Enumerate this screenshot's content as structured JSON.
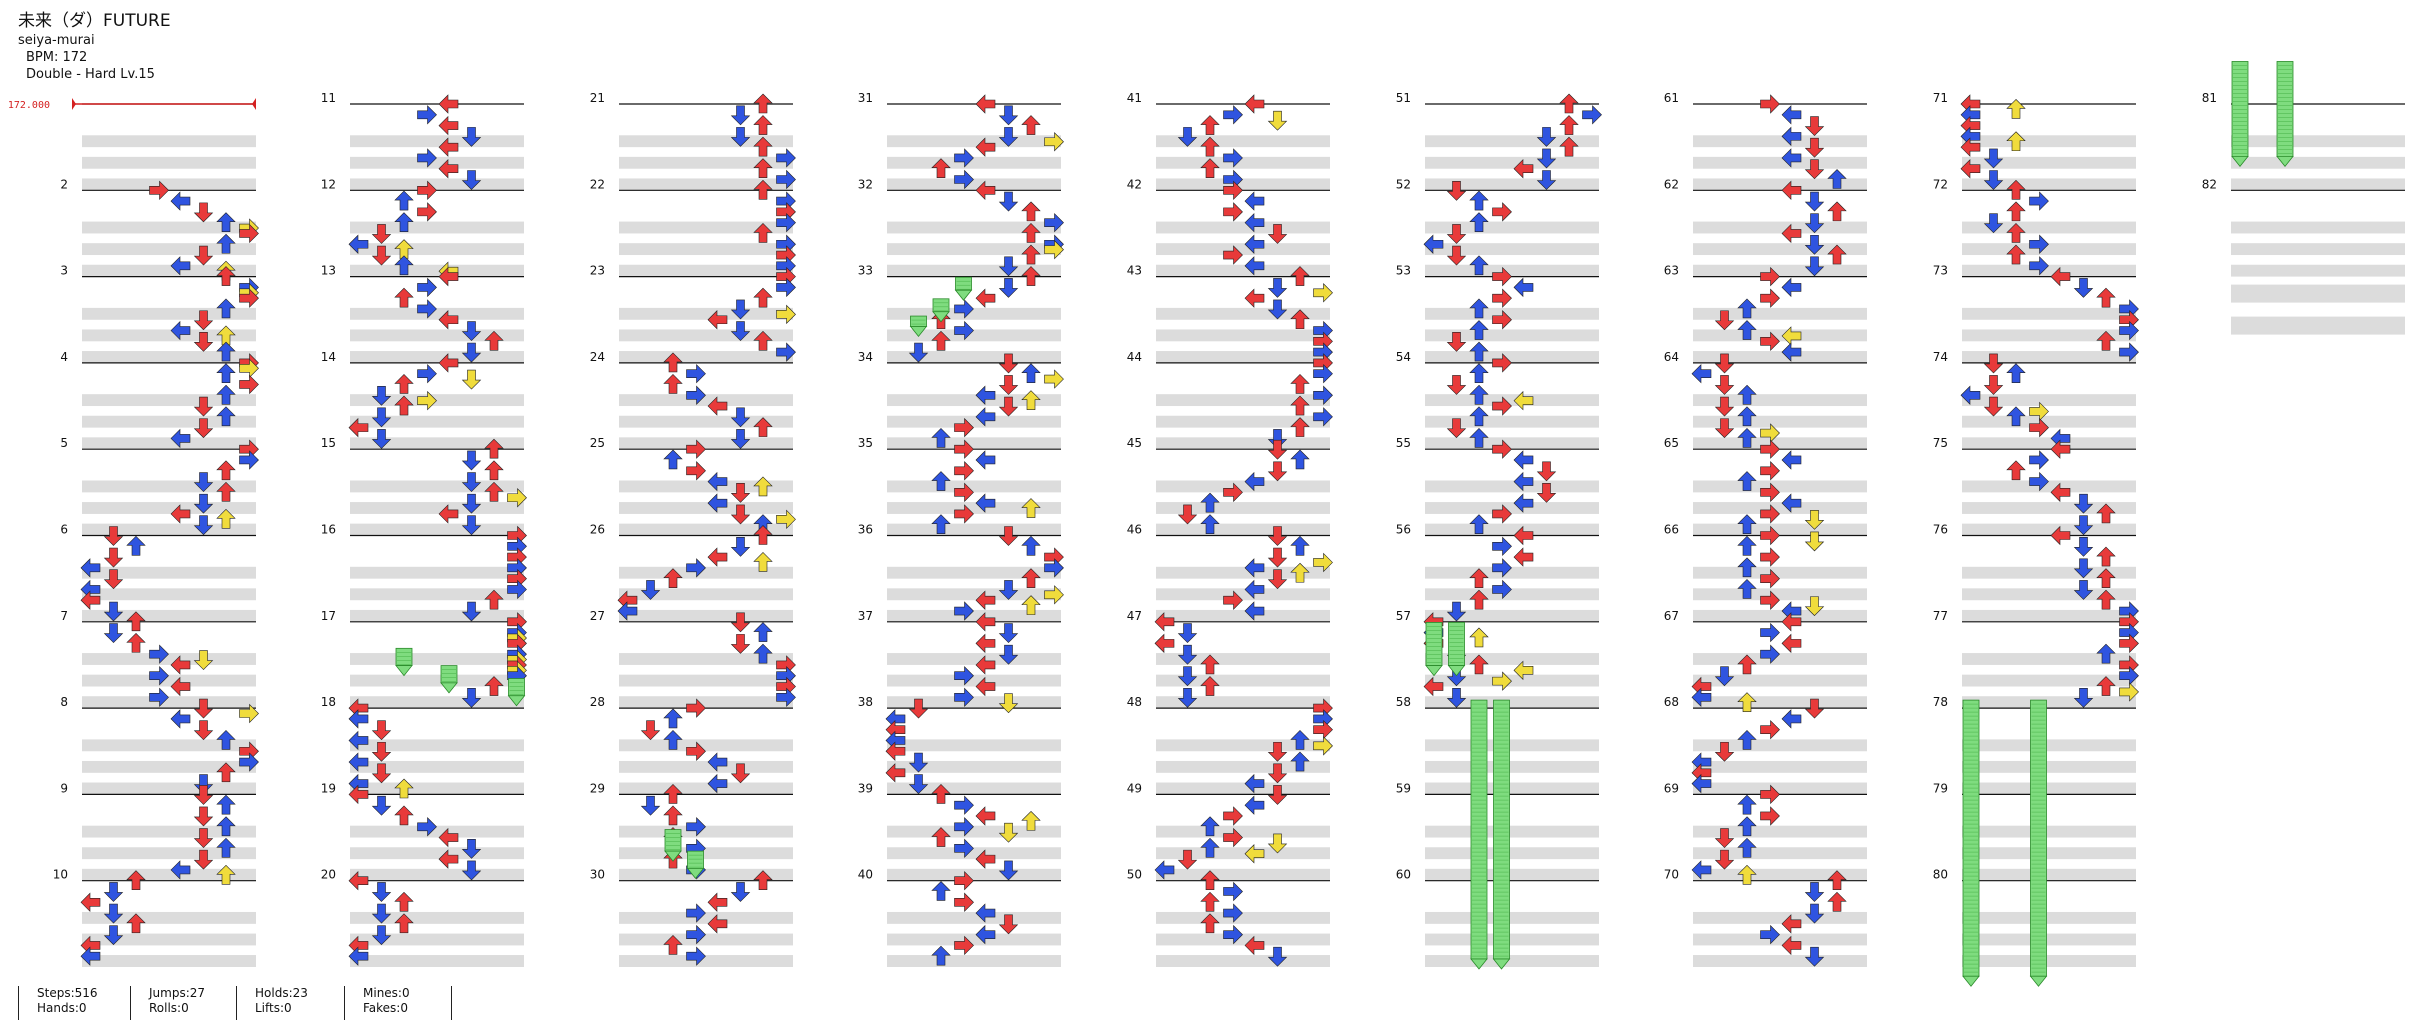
{
  "song": {
    "title": "未来（ダ）FUTURE",
    "artist": "seiya-murai",
    "bpm_line": "BPM: 172",
    "difficulty_line": "Double - Hard  Lv.15"
  },
  "bpm_marker": "172.000",
  "measure_numbers": [
    "2",
    "3",
    "4",
    "5",
    "6",
    "7",
    "8",
    "9",
    "10",
    "11",
    "12",
    "13",
    "14",
    "15",
    "16",
    "17",
    "18",
    "19",
    "20",
    "21",
    "22",
    "23",
    "24",
    "25",
    "26",
    "27",
    "28",
    "29",
    "30",
    "31",
    "32",
    "33",
    "34",
    "35",
    "36",
    "37",
    "38",
    "39",
    "40",
    "41",
    "42",
    "43",
    "44",
    "45",
    "46",
    "47",
    "48",
    "49",
    "50",
    "51",
    "52",
    "53",
    "54",
    "55",
    "56",
    "57",
    "58",
    "59",
    "60",
    "61",
    "62",
    "63",
    "64",
    "65",
    "66",
    "67",
    "68",
    "69",
    "70",
    "71",
    "72",
    "73",
    "74",
    "75",
    "76",
    "77",
    "78",
    "79",
    "80",
    "81",
    "82"
  ],
  "stats": {
    "steps": "Steps:516",
    "hands": "Hands:0",
    "jumps": "Jumps:27",
    "rolls": "Rolls:0",
    "holds": "Holds:23",
    "lifts": "Lifts:0",
    "mines": "Mines:0",
    "fakes": "Fakes:0"
  },
  "colors": {
    "quarter_note": "#e83a3a",
    "eighth_note": "#2f54e0",
    "sixteenth_note": "#f0dc3c",
    "hold_body": "#7fdc7f",
    "bpm_line": "#d42020",
    "band_gray": "#dcdcdc"
  },
  "icons": [
    "left-arrow-icon",
    "down-arrow-icon",
    "up-arrow-icon",
    "right-arrow-icon",
    "hold-note-icon"
  ]
}
